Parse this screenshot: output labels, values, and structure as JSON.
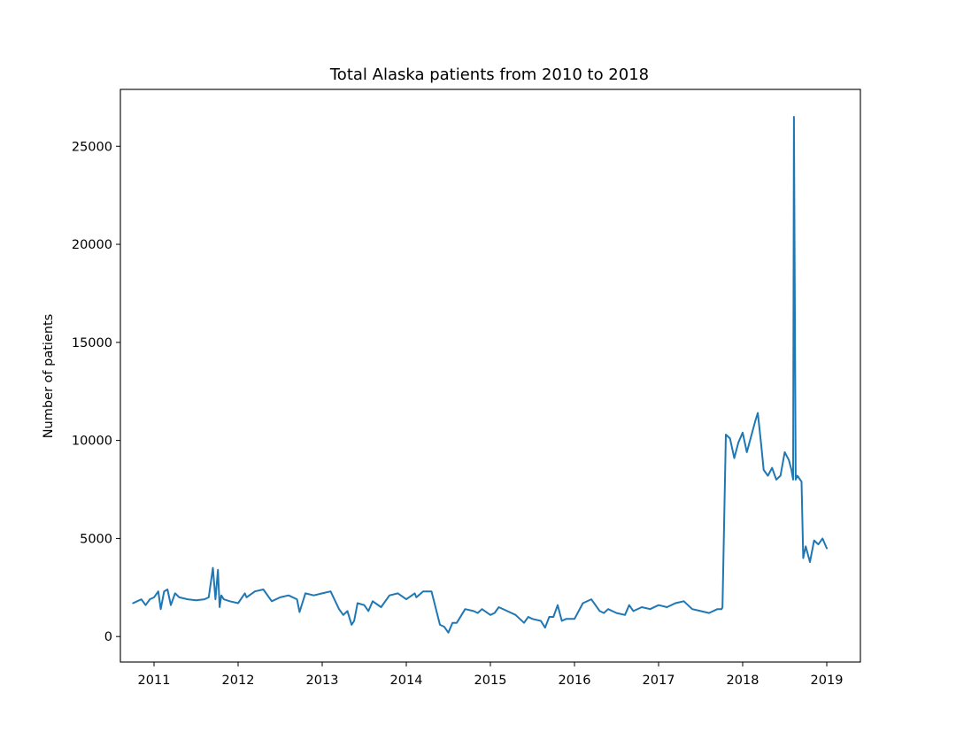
{
  "chart_data": {
    "type": "line",
    "title": "Total Alaska patients from 2010 to 2018",
    "xlabel": "",
    "ylabel": "Number of patients",
    "xlim": [
      2010.6,
      2019.4
    ],
    "ylim": [
      -1300,
      27900
    ],
    "x_ticks": [
      2011,
      2012,
      2013,
      2014,
      2015,
      2016,
      2017,
      2018,
      2019
    ],
    "x_tick_labels": [
      "2011",
      "2012",
      "2013",
      "2014",
      "2015",
      "2016",
      "2017",
      "2018",
      "2019"
    ],
    "y_ticks": [
      0,
      5000,
      10000,
      15000,
      20000,
      25000
    ],
    "y_tick_labels": [
      "0",
      "5000",
      "10000",
      "15000",
      "20000",
      "25000"
    ],
    "grid": false,
    "line_color": "#1f77b4",
    "series": [
      {
        "x": [
          2010.75,
          2010.8,
          2010.85,
          2010.9,
          2010.95,
          2011.0,
          2011.05,
          2011.08,
          2011.12,
          2011.16,
          2011.2,
          2011.25,
          2011.3,
          2011.4,
          2011.5,
          2011.6,
          2011.65,
          2011.7,
          2011.73,
          2011.76,
          2011.78,
          2011.8,
          2011.83,
          2011.9,
          2012.0,
          2012.08,
          2012.1,
          2012.2,
          2012.3,
          2012.4,
          2012.5,
          2012.6,
          2012.7,
          2012.73,
          2012.8,
          2012.9,
          2013.0,
          2013.1,
          2013.2,
          2013.25,
          2013.3,
          2013.35,
          2013.38,
          2013.42,
          2013.5,
          2013.55,
          2013.6,
          2013.7,
          2013.8,
          2013.9,
          2014.0,
          2014.1,
          2014.12,
          2014.2,
          2014.3,
          2014.4,
          2014.45,
          2014.5,
          2014.55,
          2014.58,
          2014.6,
          2014.7,
          2014.8,
          2014.85,
          2014.9,
          2015.0,
          2015.05,
          2015.1,
          2015.2,
          2015.3,
          2015.4,
          2015.45,
          2015.5,
          2015.6,
          2015.65,
          2015.7,
          2015.75,
          2015.8,
          2015.85,
          2015.9,
          2016.0,
          2016.1,
          2016.2,
          2016.3,
          2016.35,
          2016.4,
          2016.5,
          2016.6,
          2016.65,
          2016.7,
          2016.8,
          2016.9,
          2017.0,
          2017.1,
          2017.2,
          2017.3,
          2017.4,
          2017.5,
          2017.6,
          2017.7,
          2017.75,
          2017.76,
          2017.8,
          2017.85,
          2017.9,
          2017.95,
          2018.0,
          2018.05,
          2018.1,
          2018.15,
          2018.18,
          2018.22,
          2018.25,
          2018.3,
          2018.35,
          2018.4,
          2018.45,
          2018.5,
          2018.55,
          2018.58,
          2018.6,
          2018.61,
          2018.63,
          2018.65,
          2018.7,
          2018.72,
          2018.75,
          2018.8,
          2018.85,
          2018.9,
          2018.95,
          2019.0
        ],
        "values": [
          1700,
          1800,
          1900,
          1600,
          1900,
          2000,
          2300,
          1400,
          2300,
          2400,
          1600,
          2200,
          2000,
          1900,
          1850,
          1900,
          2000,
          3500,
          1900,
          3400,
          1500,
          2100,
          1900,
          1800,
          1700,
          2200,
          2000,
          2300,
          2400,
          1800,
          2000,
          2100,
          1900,
          1250,
          2200,
          2100,
          2200,
          2300,
          1400,
          1100,
          1300,
          600,
          800,
          1700,
          1600,
          1300,
          1800,
          1500,
          2100,
          2200,
          1900,
          2200,
          2000,
          2300,
          2300,
          600,
          500,
          200,
          700,
          700,
          700,
          1400,
          1300,
          1200,
          1400,
          1100,
          1200,
          1500,
          1300,
          1100,
          700,
          1000,
          900,
          800,
          450,
          1000,
          1000,
          1600,
          800,
          900,
          900,
          1700,
          1900,
          1300,
          1200,
          1400,
          1200,
          1100,
          1600,
          1300,
          1500,
          1400,
          1600,
          1500,
          1700,
          1800,
          1400,
          1300,
          1200,
          1400,
          1400,
          1500,
          10300,
          10100,
          9100,
          9900,
          10400,
          9400,
          10200,
          11000,
          11400,
          9800,
          8500,
          8200,
          8600,
          8000,
          8200,
          9400,
          9000,
          8500,
          8000,
          26500,
          8000,
          8200,
          7900,
          4000,
          4600,
          3800,
          4900,
          4700,
          5000,
          4500
        ]
      }
    ]
  }
}
